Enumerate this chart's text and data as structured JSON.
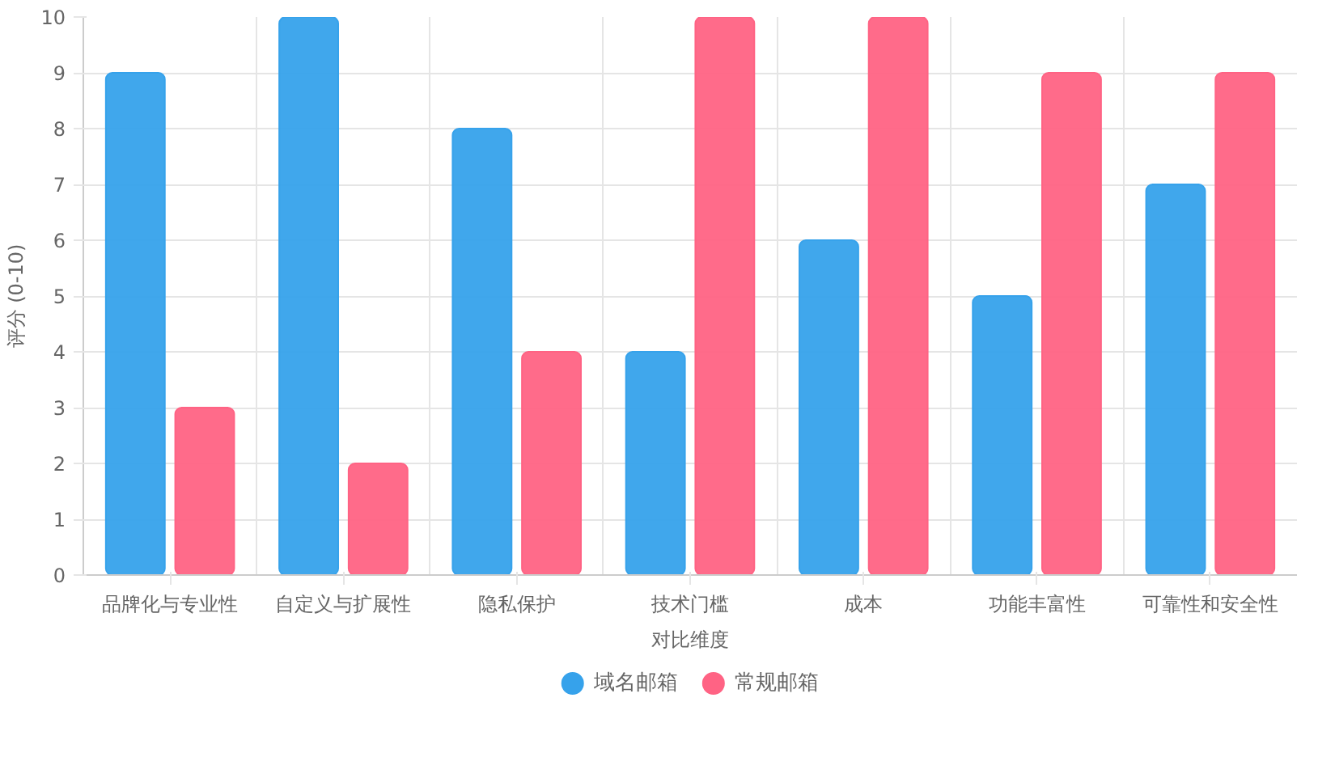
{
  "chart_data": {
    "type": "bar",
    "xlabel": "对比维度",
    "ylabel": "评分 (0-10)",
    "categories": [
      "品牌化与专业性",
      "自定义与扩展性",
      "隐私保护",
      "技术门槛",
      "成本",
      "功能丰富性",
      "可靠性和安全性"
    ],
    "series": [
      {
        "name": "域名邮箱",
        "color": "#36a2eb",
        "values": [
          9,
          10,
          8,
          4,
          6,
          5,
          7
        ]
      },
      {
        "name": "常规邮箱",
        "color": "#ff6384",
        "values": [
          3,
          2,
          4,
          10,
          10,
          9,
          9
        ]
      }
    ],
    "ylim": [
      0,
      10
    ],
    "yticks": [
      0,
      1,
      2,
      3,
      4,
      5,
      6,
      7,
      8,
      9,
      10
    ],
    "grid": true,
    "legend": "bottom",
    "marker": "circle"
  }
}
